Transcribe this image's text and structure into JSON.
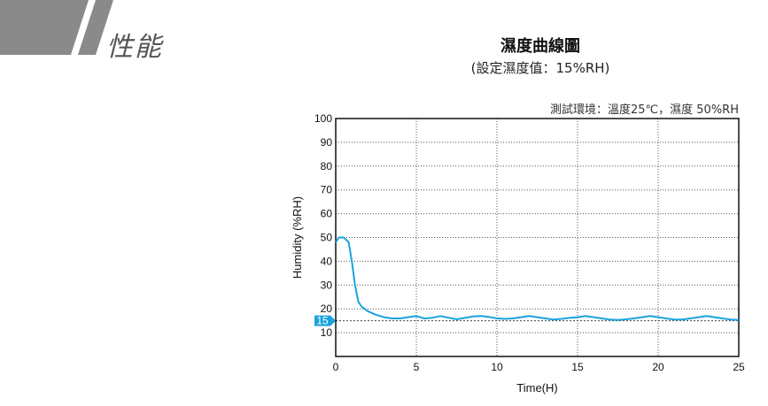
{
  "section": {
    "title": "性能"
  },
  "chart_data": {
    "type": "line",
    "title": "濕度曲線圖",
    "subtitle": "(設定濕度值：15%RH)",
    "note": "測試環境：溫度25℃，濕度 50%RH",
    "xlabel": "Time(H)",
    "ylabel": "Humidity (%RH)",
    "xlim": [
      0,
      25
    ],
    "ylim": [
      0,
      100
    ],
    "xticks": [
      0,
      5,
      10,
      15,
      20,
      25
    ],
    "yticks": [
      10,
      20,
      30,
      40,
      50,
      60,
      70,
      80,
      90,
      100
    ],
    "grid": true,
    "setpoint": {
      "label": "15",
      "value": 15
    },
    "series": [
      {
        "color": "#1aa3dd",
        "x": [
          0,
          0.2,
          0.5,
          0.8,
          1.0,
          1.2,
          1.4,
          1.6,
          2.0,
          2.5,
          3.0,
          3.5,
          4.0,
          4.5,
          5.0,
          5.5,
          6.0,
          6.5,
          7.0,
          7.5,
          8.0,
          8.5,
          9.0,
          9.5,
          10.0,
          10.5,
          11.0,
          11.5,
          12.0,
          12.5,
          13.0,
          13.5,
          14.0,
          14.5,
          15.0,
          15.5,
          16.0,
          16.5,
          17.0,
          17.5,
          18.0,
          18.5,
          19.0,
          19.5,
          20.0,
          20.5,
          21.0,
          21.5,
          22.0,
          22.5,
          23.0,
          23.5,
          24.0,
          24.5,
          25.0
        ],
        "y": [
          48,
          50,
          50,
          48,
          40,
          30,
          23,
          21,
          19,
          17.5,
          16.5,
          16,
          16,
          16.5,
          17,
          16,
          16.3,
          17,
          16.3,
          15.6,
          16.2,
          16.8,
          17,
          16.6,
          16,
          15.8,
          16,
          16.5,
          17,
          16.5,
          16,
          15.5,
          15.8,
          16.2,
          16.5,
          17,
          16.5,
          16,
          15.5,
          15.3,
          15.6,
          16,
          16.5,
          17,
          16.5,
          16,
          15.5,
          15.5,
          16,
          16.5,
          17,
          16.5,
          16,
          15.5,
          15.3
        ]
      }
    ]
  }
}
